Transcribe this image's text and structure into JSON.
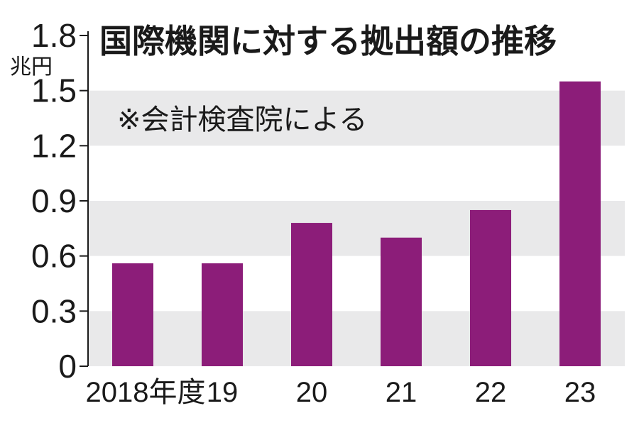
{
  "chart_data": {
    "type": "bar",
    "title": "国際機関に対する拠出額の推移",
    "note": "※会計検査院による",
    "unit": "兆円",
    "categories": [
      "2018年度",
      "19",
      "20",
      "21",
      "22",
      "23"
    ],
    "values": [
      0.56,
      0.56,
      0.78,
      0.7,
      0.85,
      1.55
    ],
    "y_ticks": [
      "0",
      "0.3",
      "0.6",
      "0.9",
      "1.2",
      "1.5",
      "1.8"
    ],
    "ylim": [
      0,
      1.8
    ],
    "grid": "alternating bands",
    "colors": {
      "bar": "#8c1d79",
      "band": "#e9e9ea",
      "axis": "#1a1a1a"
    }
  }
}
